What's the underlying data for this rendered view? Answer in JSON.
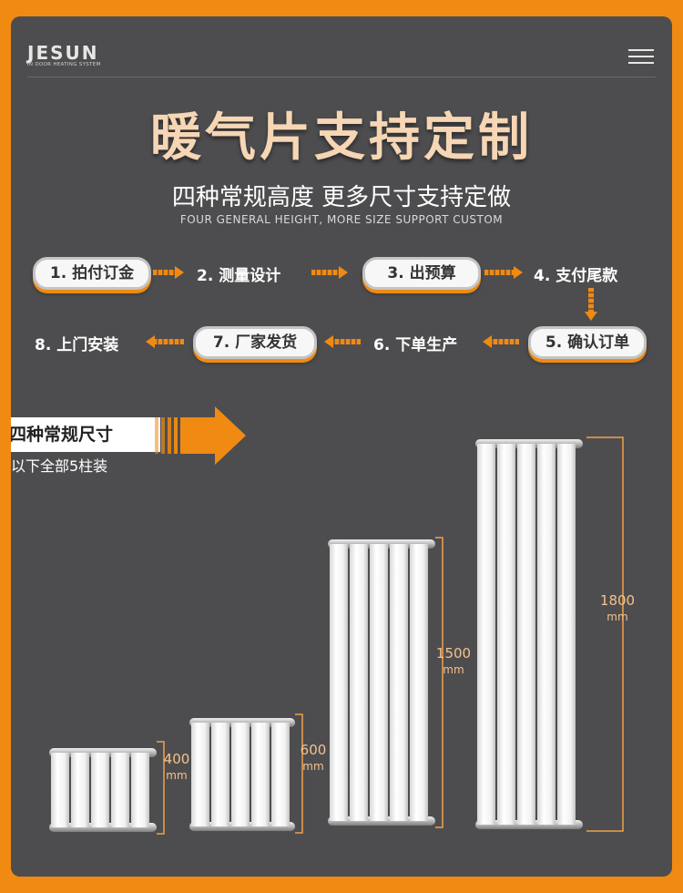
{
  "brand": {
    "name": "JESUN",
    "tagline": "IN DOOR HEATING SYSTEM"
  },
  "title": "暖气片支持定制",
  "subtitle": "四种常规高度 更多尺寸支持定做",
  "subtitle_en": "FOUR GENERAL HEIGHT, MORE SIZE SUPPORT CUSTOM",
  "steps": [
    {
      "label": "1. 拍付订金"
    },
    {
      "label": "2. 测量设计"
    },
    {
      "label": "3. 出预算"
    },
    {
      "label": "4. 支付尾款"
    },
    {
      "label": "5. 确认订单"
    },
    {
      "label": "6. 下单生产"
    },
    {
      "label": "7. 厂家发货"
    },
    {
      "label": "8. 上门安装"
    }
  ],
  "sizes": {
    "banner": "四种常规尺寸",
    "note": "以下全部5柱装",
    "radiators": [
      {
        "height": "400",
        "unit": "mm"
      },
      {
        "height": "600",
        "unit": "mm"
      },
      {
        "height": "1500",
        "unit": "mm"
      },
      {
        "height": "1800",
        "unit": "mm"
      }
    ]
  },
  "colors": {
    "accent": "#f08a12",
    "panel": "#4d4d4f",
    "title": "#f6d6b4"
  }
}
